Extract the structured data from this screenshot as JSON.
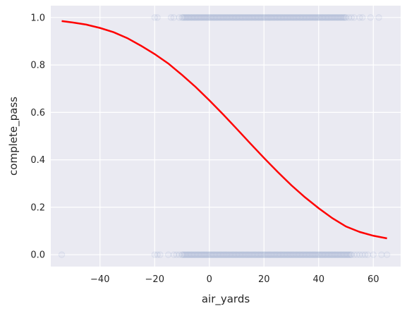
{
  "chart_data": {
    "type": "scatter",
    "xlabel": "air_yards",
    "ylabel": "complete_pass",
    "xlim": [
      -58,
      70
    ],
    "ylim": [
      -0.05,
      1.05
    ],
    "x_ticks": [
      -40,
      -20,
      0,
      20,
      40,
      60
    ],
    "y_ticks": [
      0.0,
      0.2,
      0.4,
      0.6,
      0.8,
      1.0
    ],
    "x_tick_labels": [
      "−40",
      "−20",
      "0",
      "20",
      "40",
      "60"
    ],
    "y_tick_labels": [
      "0.0",
      "0.2",
      "0.4",
      "0.6",
      "0.8",
      "1.0"
    ],
    "grid": true,
    "legend": "none",
    "background_color": "#eaeaf2",
    "point_color": "#4c72b0",
    "curve_color": "#ff0000",
    "series": [
      {
        "kind": "scatter",
        "y": 1,
        "dense_range": [
          -10,
          50
        ],
        "sparse_x": [
          -20,
          -19,
          -14,
          -13,
          -11,
          51,
          52,
          53,
          55,
          56,
          59,
          62
        ]
      },
      {
        "kind": "scatter",
        "y": 0,
        "dense_range": [
          -10,
          52
        ],
        "sparse_x": [
          -54,
          -20,
          -19,
          -18,
          -15,
          -13,
          -12,
          -11,
          53,
          54,
          55,
          56,
          57,
          58,
          60,
          63,
          65
        ]
      },
      {
        "kind": "line",
        "x": [
          -54,
          -50,
          -45,
          -40,
          -35,
          -30,
          -25,
          -20,
          -15,
          -10,
          -5,
          0,
          5,
          10,
          15,
          20,
          25,
          30,
          35,
          40,
          45,
          50,
          55,
          60,
          65
        ],
        "y": [
          0.985,
          0.979,
          0.97,
          0.956,
          0.938,
          0.913,
          0.881,
          0.846,
          0.806,
          0.758,
          0.707,
          0.651,
          0.592,
          0.531,
          0.469,
          0.408,
          0.349,
          0.293,
          0.242,
          0.196,
          0.154,
          0.119,
          0.096,
          0.08,
          0.069
        ]
      }
    ]
  }
}
